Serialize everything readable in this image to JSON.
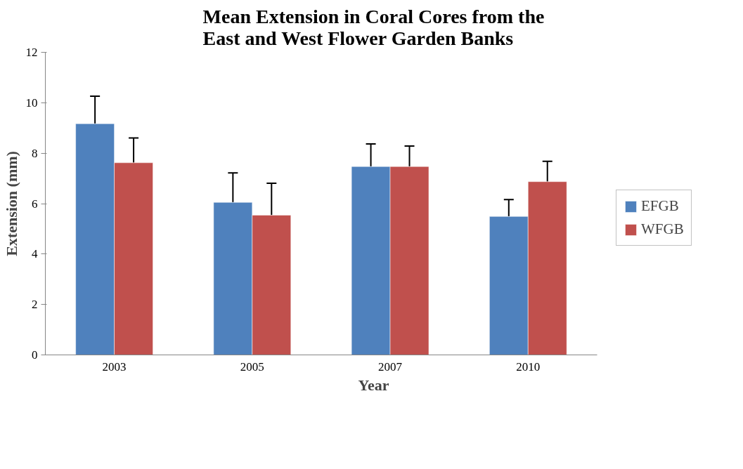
{
  "chart_data": {
    "type": "bar",
    "title": "Mean Extension in Coral Cores from the East and West Flower Garden Banks",
    "xlabel": "Year",
    "ylabel": "Extension (mm)",
    "categories": [
      "2003",
      "2005",
      "2007",
      "2010"
    ],
    "series": [
      {
        "name": "EFGB",
        "color": "#4f81bd",
        "values": [
          9.17,
          6.05,
          7.47,
          5.49
        ],
        "errors": [
          1.09,
          1.17,
          0.9,
          0.67
        ]
      },
      {
        "name": "WFGB",
        "color": "#c0504d",
        "values": [
          7.62,
          5.54,
          7.47,
          6.87
        ],
        "errors": [
          0.98,
          1.27,
          0.81,
          0.81
        ]
      }
    ],
    "ylim": [
      0,
      12
    ],
    "yticks": [
      0,
      2,
      4,
      6,
      8,
      10,
      12
    ],
    "grid": false,
    "legend": "right"
  }
}
